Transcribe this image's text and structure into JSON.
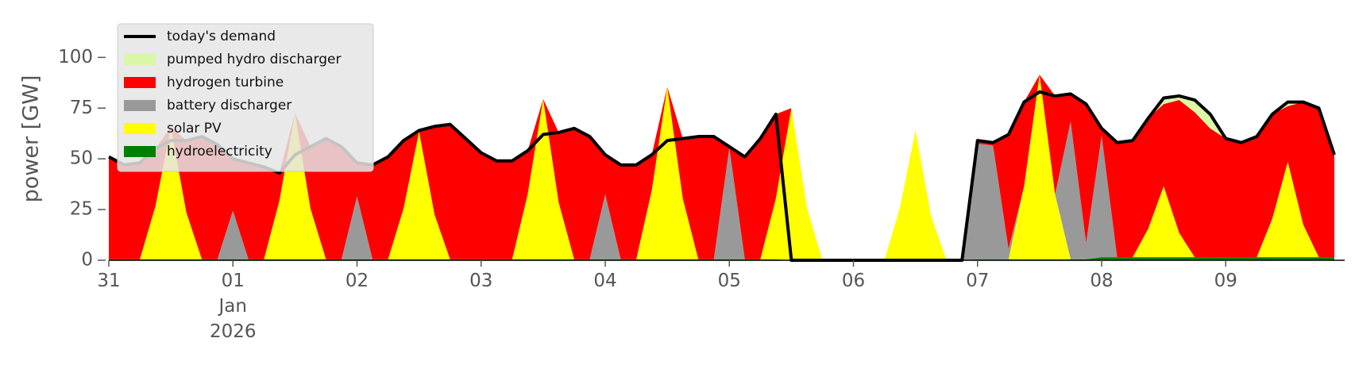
{
  "chart_data": {
    "type": "area",
    "y_label": "power [GW]",
    "x": [
      0,
      3,
      6,
      9,
      12,
      15,
      18,
      21,
      24,
      27,
      30,
      33,
      36,
      39,
      42,
      45,
      48,
      51,
      54,
      57,
      60,
      63,
      66,
      69,
      72,
      75,
      78,
      81,
      84,
      87,
      90,
      93,
      96,
      99,
      102,
      105,
      108,
      111,
      114,
      117,
      120,
      123,
      126,
      129,
      132,
      135,
      138,
      141,
      144,
      147,
      150,
      153,
      156,
      159,
      162,
      165,
      168,
      171,
      174,
      177,
      180,
      183,
      186,
      189,
      192,
      195,
      198,
      201,
      204,
      207,
      210,
      213,
      216,
      219,
      222,
      225,
      228,
      231,
      234,
      237
    ],
    "xlim": [
      0,
      239
    ],
    "xticks": [
      {
        "value": 0,
        "label": "31"
      },
      {
        "value": 24,
        "label": "01\nJan\n2026"
      },
      {
        "value": 48,
        "label": "02"
      },
      {
        "value": 72,
        "label": "03"
      },
      {
        "value": 96,
        "label": "04"
      },
      {
        "value": 120,
        "label": "05"
      },
      {
        "value": 144,
        "label": "06"
      },
      {
        "value": 168,
        "label": "07"
      },
      {
        "value": 192,
        "label": "08"
      },
      {
        "value": 216,
        "label": "09"
      }
    ],
    "ylim": [
      0,
      115
    ],
    "yticks": [
      0,
      25,
      50,
      75,
      100
    ],
    "grid": false,
    "legend": "upper left",
    "series": [
      {
        "name": "today's demand",
        "style": "line",
        "color": "#000000",
        "values": [
          51,
          47,
          48,
          55,
          59,
          59,
          61,
          57,
          50,
          48,
          46,
          43,
          52,
          56,
          60,
          56,
          48,
          47,
          51,
          59,
          64,
          66,
          67,
          60,
          53,
          49,
          49,
          54,
          62,
          63,
          65,
          61,
          52,
          47,
          47,
          52,
          59,
          60,
          61,
          61,
          56,
          51,
          60,
          72,
          0,
          0,
          0,
          0,
          0,
          0,
          0,
          0,
          0,
          0,
          0,
          0,
          59,
          58,
          62,
          78,
          83,
          81,
          82,
          77,
          65,
          58,
          59,
          70,
          80,
          81,
          79,
          72,
          60,
          58,
          61,
          72,
          78,
          78,
          75,
          52
        ]
      },
      {
        "name": "pumped hydro discharger",
        "style": "area",
        "color": "#d9f7a6",
        "values": [
          0,
          0,
          0,
          0,
          0,
          0,
          0,
          0,
          0,
          0,
          0,
          0,
          0,
          0,
          0,
          0,
          0,
          0,
          0,
          0,
          0,
          0,
          0,
          0,
          0,
          0,
          0,
          0,
          0,
          0,
          0,
          0,
          0,
          0,
          0,
          0,
          0,
          0,
          0,
          0,
          0,
          0,
          0,
          0,
          0,
          0,
          0,
          0,
          0,
          0,
          0,
          0,
          0,
          0,
          0,
          0,
          0,
          0,
          0,
          0,
          0,
          0,
          0,
          0,
          0,
          0,
          0,
          0,
          3,
          2,
          6,
          7,
          0,
          0,
          0,
          0,
          2,
          0,
          0,
          0
        ]
      },
      {
        "name": "hydrogen turbine",
        "style": "area",
        "color": "#ff0000",
        "values": [
          50.5,
          46.5,
          47.5,
          28.5,
          0,
          35.5,
          60.5,
          56.5,
          25.5,
          47.5,
          45.5,
          13.5,
          0,
          30.5,
          59.5,
          55.5,
          16.5,
          46.5,
          50.5,
          33.5,
          0.5,
          43.5,
          66.5,
          59.5,
          52.5,
          48.5,
          48.5,
          21.5,
          0,
          34.5,
          64.5,
          60.5,
          19.5,
          46.5,
          46.5,
          17.5,
          0,
          29.5,
          60.5,
          60.5,
          0.5,
          50.5,
          59.5,
          41.5,
          0,
          0,
          0,
          0,
          0,
          0,
          0,
          0,
          0,
          0,
          0,
          0,
          1.5,
          1.5,
          56.5,
          41.5,
          0,
          48.5,
          13.5,
          68.5,
          3.5,
          56.5,
          57.5,
          54.5,
          40.5,
          65.5,
          71.5,
          63.5,
          58.5,
          56.5,
          59.5,
          51.5,
          27.5,
          60.5,
          73.5,
          50.5
        ]
      },
      {
        "name": "battery discharger",
        "style": "area",
        "color": "#999999",
        "values": [
          0,
          0,
          0,
          0,
          0,
          0,
          0,
          0,
          24,
          0,
          0,
          0,
          0,
          0,
          0,
          0,
          31,
          0,
          0,
          0,
          0,
          0,
          0,
          0,
          0,
          0,
          0,
          0,
          0,
          0,
          0,
          0,
          32,
          0,
          0,
          0,
          0,
          0,
          0,
          0,
          55,
          0,
          0,
          0,
          0,
          0,
          0,
          0,
          0,
          0,
          0,
          0,
          0,
          0,
          0,
          0,
          57,
          56,
          5,
          0,
          0,
          0,
          68,
          8,
          60,
          0,
          0,
          0,
          0,
          0,
          0,
          0,
          0,
          0,
          0,
          0,
          0,
          0,
          0,
          0
        ]
      },
      {
        "name": "solar PV",
        "style": "area",
        "color": "#ffff00",
        "values": [
          0,
          0,
          0,
          26,
          65,
          23,
          0,
          0,
          0,
          0,
          0,
          29,
          72,
          25,
          0,
          0,
          0,
          0,
          0,
          25,
          63,
          22,
          0,
          0,
          0,
          0,
          0,
          32,
          79,
          28,
          0,
          0,
          0,
          0,
          0,
          34,
          85,
          30,
          0,
          0,
          0,
          0,
          0,
          30,
          75,
          26,
          0,
          0,
          0,
          0,
          0,
          26,
          64,
          22,
          0,
          0,
          0,
          0,
          0,
          36,
          91,
          32,
          0,
          0,
          0,
          0,
          0,
          14,
          35,
          12,
          0,
          0,
          0,
          0,
          0,
          19,
          47,
          16,
          0,
          0
        ]
      },
      {
        "name": "hydroelectricity",
        "style": "area",
        "color": "#008000",
        "values": [
          0.5,
          0.5,
          0.5,
          0.5,
          0.5,
          0.5,
          0.5,
          0.5,
          0.5,
          0.5,
          0.5,
          0.5,
          0.5,
          0.5,
          0.5,
          0.5,
          0.5,
          0.5,
          0.5,
          0.5,
          0.5,
          0.5,
          0.5,
          0.5,
          0.5,
          0.5,
          0.5,
          0.5,
          0.5,
          0.5,
          0.5,
          0.5,
          0.5,
          0.5,
          0.5,
          0.5,
          0.5,
          0.5,
          0.5,
          0.5,
          0.5,
          0.5,
          0.5,
          0.5,
          0,
          0,
          0,
          0,
          0,
          0,
          0,
          0,
          0,
          0,
          0,
          0,
          0.5,
          0.5,
          0.5,
          0.5,
          0.5,
          0.5,
          0.5,
          0.5,
          1.5,
          1.5,
          1.5,
          1.5,
          1.5,
          1.5,
          1.5,
          1.5,
          1.5,
          1.5,
          1.5,
          1.5,
          1.5,
          1.5,
          1.5,
          1.5
        ]
      }
    ]
  }
}
